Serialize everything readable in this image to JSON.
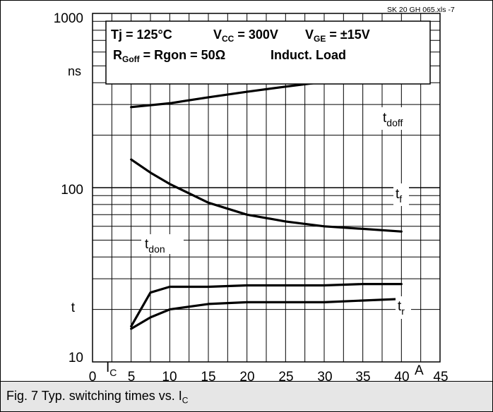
{
  "source_ref": "SK 20 GH 065.xls  -7",
  "conditions": {
    "line1": {
      "tj": "Tj = 125°C",
      "vcc_main": "V",
      "vcc_sub": "CC",
      "vcc_val": " = 300V",
      "vge_main": "V",
      "vge_sub": "GE",
      "vge_val": " = ±15V"
    },
    "line2": {
      "r_main": "R",
      "r_sub": "Goff",
      "r_val": " = Rgon = 50Ω",
      "load": "Induct. Load"
    }
  },
  "caption": {
    "text": "Fig. 7 Typ. switching times vs. I",
    "sub": "C"
  },
  "colors": {
    "curve": "#000000",
    "grid": "#000000",
    "caption_bg": "#e6e6e6"
  },
  "chart_data": {
    "type": "line",
    "title": "",
    "xlabel": "I",
    "xlabel_sub": "C",
    "x_unit": "A",
    "ylabel": "t",
    "y_unit": "ns",
    "x_ticks": [
      "0",
      "5",
      "10",
      "15",
      "20",
      "25",
      "30",
      "35",
      "40",
      "45"
    ],
    "y_tick_labels": [
      "10",
      "100",
      "1000"
    ],
    "xlim": [
      0,
      45
    ],
    "ylim": [
      10,
      1000
    ],
    "y_scale": "log",
    "grid": true,
    "series": [
      {
        "name": "t",
        "sub": "doff",
        "x": [
          5,
          10,
          15,
          20,
          25,
          30,
          35,
          40
        ],
        "y": [
          290,
          305,
          330,
          355,
          380,
          405,
          410,
          410
        ]
      },
      {
        "name": "t",
        "sub": "f",
        "x": [
          5,
          7.5,
          10,
          15,
          20,
          25,
          30,
          35,
          40
        ],
        "y": [
          145,
          122,
          105,
          82,
          70,
          64,
          60,
          58,
          56
        ]
      },
      {
        "name": "t",
        "sub": "don",
        "x": [
          5,
          7.5,
          10,
          15,
          20,
          25,
          30,
          35,
          40
        ],
        "y": [
          16,
          25,
          27,
          27,
          27.5,
          27.5,
          27.5,
          28,
          28
        ]
      },
      {
        "name": "t",
        "sub": "r",
        "x": [
          5,
          7.5,
          10,
          15,
          20,
          25,
          30,
          35,
          40
        ],
        "y": [
          15.5,
          18,
          20,
          21.5,
          22,
          22,
          22,
          22.5,
          23
        ]
      }
    ]
  }
}
